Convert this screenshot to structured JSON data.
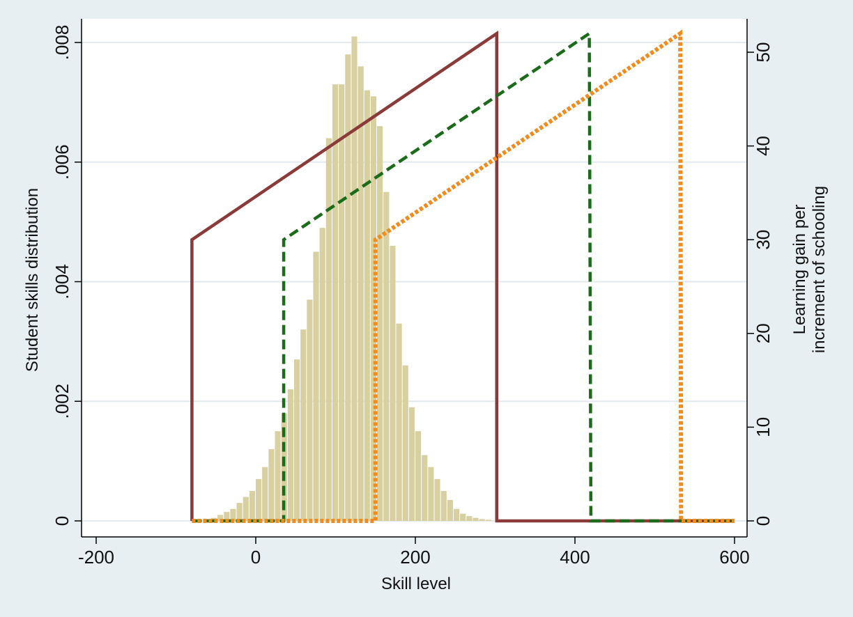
{
  "chart_data": {
    "type": "bar",
    "grid": true,
    "legend": "none",
    "xlabel": "Skill level",
    "ylabel": "Student skills distribution",
    "y2label": [
      "Learning gain per",
      "increment of schooling"
    ],
    "xlim": [
      -200,
      600
    ],
    "ylim": [
      0,
      0.008
    ],
    "y2lim": [
      0,
      52
    ],
    "xticks": [
      -200,
      0,
      200,
      400,
      600
    ],
    "yticks": [
      0,
      0.002,
      0.004,
      0.006,
      0.008
    ],
    "ytick_labels": [
      "0",
      ".002",
      ".004",
      ".006",
      ".008"
    ],
    "y2ticks": [
      0,
      10,
      20,
      30,
      40,
      50
    ],
    "histogram": {
      "name": "skills distribution",
      "bin_width": 8,
      "color": "#d8d0a0",
      "bins": [
        {
          "x": -52,
          "y": 5e-05
        },
        {
          "x": -44,
          "y": 0.0001
        },
        {
          "x": -36,
          "y": 0.00015
        },
        {
          "x": -28,
          "y": 0.0002
        },
        {
          "x": -20,
          "y": 0.0003
        },
        {
          "x": -12,
          "y": 0.0004
        },
        {
          "x": -4,
          "y": 0.0005
        },
        {
          "x": 4,
          "y": 0.0007
        },
        {
          "x": 12,
          "y": 0.0009
        },
        {
          "x": 20,
          "y": 0.0012
        },
        {
          "x": 28,
          "y": 0.0015
        },
        {
          "x": 36,
          "y": 0.0018
        },
        {
          "x": 44,
          "y": 0.0022
        },
        {
          "x": 52,
          "y": 0.0027
        },
        {
          "x": 60,
          "y": 0.0032
        },
        {
          "x": 68,
          "y": 0.0037
        },
        {
          "x": 76,
          "y": 0.0045
        },
        {
          "x": 84,
          "y": 0.0049
        },
        {
          "x": 92,
          "y": 0.0064
        },
        {
          "x": 100,
          "y": 0.0073
        },
        {
          "x": 108,
          "y": 0.0073
        },
        {
          "x": 116,
          "y": 0.0078
        },
        {
          "x": 124,
          "y": 0.0081
        },
        {
          "x": 132,
          "y": 0.0076
        },
        {
          "x": 140,
          "y": 0.0072
        },
        {
          "x": 148,
          "y": 0.0071
        },
        {
          "x": 156,
          "y": 0.0066
        },
        {
          "x": 164,
          "y": 0.0055
        },
        {
          "x": 172,
          "y": 0.0046
        },
        {
          "x": 180,
          "y": 0.0033
        },
        {
          "x": 188,
          "y": 0.0026
        },
        {
          "x": 196,
          "y": 0.0019
        },
        {
          "x": 204,
          "y": 0.0015
        },
        {
          "x": 212,
          "y": 0.0011
        },
        {
          "x": 220,
          "y": 0.0009
        },
        {
          "x": 228,
          "y": 0.0007
        },
        {
          "x": 236,
          "y": 0.0005
        },
        {
          "x": 244,
          "y": 0.00035
        },
        {
          "x": 252,
          "y": 0.0002
        },
        {
          "x": 260,
          "y": 0.00012
        },
        {
          "x": 268,
          "y": 8e-05
        },
        {
          "x": 276,
          "y": 5e-05
        },
        {
          "x": 284,
          "y": 3e-05
        },
        {
          "x": 292,
          "y": 2e-05
        }
      ]
    },
    "series": [
      {
        "color": "#8b3a3a",
        "dash": "solid",
        "points": [
          [
            -80,
            0
          ],
          [
            -80,
            30
          ],
          [
            302,
            52
          ],
          [
            302,
            0
          ],
          [
            600,
            0
          ]
        ]
      },
      {
        "color": "#1a6b1a",
        "dash": "dashed",
        "points": [
          [
            -80,
            0
          ],
          [
            35,
            0
          ],
          [
            35,
            30
          ],
          [
            418,
            52
          ],
          [
            420,
            0
          ],
          [
            600,
            0
          ]
        ]
      },
      {
        "color": "#f08c1e",
        "dash": "dotted",
        "points": [
          [
            -80,
            0
          ],
          [
            150,
            0
          ],
          [
            150,
            30
          ],
          [
            532,
            52
          ],
          [
            533,
            0
          ],
          [
            600,
            0
          ]
        ]
      }
    ]
  }
}
